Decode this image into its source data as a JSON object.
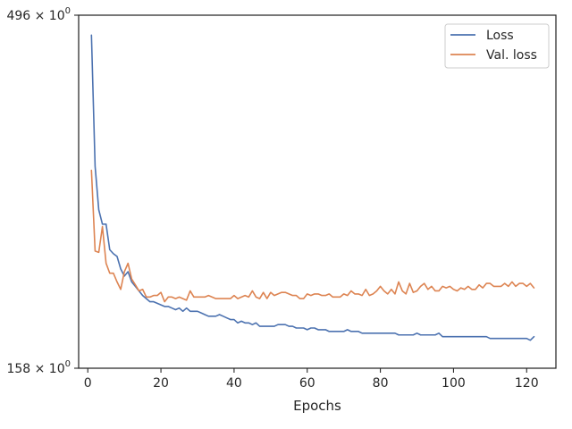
{
  "chart_data": {
    "type": "line",
    "title": "",
    "xlabel": "Epochs",
    "ylabel": "",
    "y_scale": "log",
    "xlim": [
      -2.5,
      128
    ],
    "ylim": [
      158,
      496
    ],
    "x_ticks": [
      0,
      20,
      40,
      60,
      80,
      100,
      120
    ],
    "y_ticks": [
      {
        "value": 496,
        "label_base": "496",
        "label_exp": "0"
      },
      {
        "value": 158,
        "label_base": "158",
        "label_exp": "0"
      }
    ],
    "grid": false,
    "legend": {
      "placement": "top-right"
    },
    "series": [
      {
        "name": "Loss",
        "color": "#4c72b0",
        "x": [
          1,
          2,
          3,
          4,
          5,
          6,
          7,
          8,
          9,
          10,
          11,
          12,
          13,
          14,
          15,
          16,
          17,
          18,
          19,
          20,
          21,
          22,
          23,
          24,
          25,
          26,
          27,
          28,
          29,
          30,
          31,
          32,
          33,
          34,
          35,
          36,
          37,
          38,
          39,
          40,
          41,
          42,
          43,
          44,
          45,
          46,
          47,
          48,
          49,
          50,
          51,
          52,
          53,
          54,
          55,
          56,
          57,
          58,
          59,
          60,
          61,
          62,
          63,
          64,
          65,
          66,
          67,
          68,
          69,
          70,
          71,
          72,
          73,
          74,
          75,
          76,
          77,
          78,
          79,
          80,
          81,
          82,
          83,
          84,
          85,
          86,
          87,
          88,
          89,
          90,
          91,
          92,
          93,
          94,
          95,
          96,
          97,
          98,
          99,
          100,
          101,
          102,
          103,
          104,
          105,
          106,
          107,
          108,
          109,
          110,
          111,
          112,
          113,
          114,
          115,
          116,
          117,
          118,
          119,
          120,
          121,
          122
        ],
        "values": [
          465,
          304,
          264,
          252,
          252,
          232,
          229,
          227,
          218,
          213,
          216,
          209,
          206,
          203,
          200,
          198,
          196,
          196,
          195,
          194,
          193,
          193,
          192,
          191,
          192,
          190,
          192,
          190,
          190,
          190,
          189,
          188,
          187,
          187,
          187,
          188,
          187,
          186,
          185,
          185,
          183,
          184,
          183,
          183,
          182,
          183,
          181,
          181,
          181,
          181,
          181,
          182,
          182,
          182,
          181,
          181,
          180,
          180,
          180,
          179,
          180,
          180,
          179,
          179,
          179,
          178,
          178,
          178,
          178,
          178,
          179,
          178,
          178,
          178,
          177,
          177,
          177,
          177,
          177,
          177,
          177,
          177,
          177,
          177,
          176,
          176,
          176,
          176,
          176,
          177,
          176,
          176,
          176,
          176,
          176,
          177,
          175,
          175,
          175,
          175,
          175,
          175,
          175,
          175,
          175,
          175,
          175,
          175,
          175,
          174,
          174,
          174,
          174,
          174,
          174,
          174,
          174,
          174,
          174,
          174,
          173,
          175
        ]
      },
      {
        "name": "Val. loss",
        "color": "#dd8452",
        "x": [
          1,
          2,
          3,
          4,
          5,
          6,
          7,
          8,
          9,
          10,
          11,
          12,
          13,
          14,
          15,
          16,
          17,
          18,
          19,
          20,
          21,
          22,
          23,
          24,
          25,
          26,
          27,
          28,
          29,
          30,
          31,
          32,
          33,
          34,
          35,
          36,
          37,
          38,
          39,
          40,
          41,
          42,
          43,
          44,
          45,
          46,
          47,
          48,
          49,
          50,
          51,
          52,
          53,
          54,
          55,
          56,
          57,
          58,
          59,
          60,
          61,
          62,
          63,
          64,
          65,
          66,
          67,
          68,
          69,
          70,
          71,
          72,
          73,
          74,
          75,
          76,
          77,
          78,
          79,
          80,
          81,
          82,
          83,
          84,
          85,
          86,
          87,
          88,
          89,
          90,
          91,
          92,
          93,
          94,
          95,
          96,
          97,
          98,
          99,
          100,
          101,
          102,
          103,
          104,
          105,
          106,
          107,
          108,
          109,
          110,
          111,
          112,
          113,
          114,
          115,
          116,
          117,
          118,
          119,
          120,
          121,
          122
        ],
        "values": [
          300,
          231,
          230,
          250,
          222,
          215,
          215,
          209,
          204,
          216,
          222,
          211,
          207,
          203,
          204,
          199,
          199,
          200,
          200,
          202,
          196,
          199,
          199,
          198,
          199,
          198,
          197,
          203,
          199,
          199,
          199,
          199,
          200,
          199,
          198,
          198,
          198,
          198,
          198,
          200,
          198,
          199,
          200,
          199,
          203,
          199,
          198,
          202,
          198,
          202,
          200,
          201,
          202,
          202,
          201,
          200,
          200,
          198,
          198,
          201,
          200,
          201,
          201,
          200,
          200,
          201,
          199,
          199,
          199,
          201,
          200,
          203,
          201,
          201,
          200,
          204,
          200,
          201,
          203,
          206,
          203,
          201,
          204,
          201,
          209,
          203,
          201,
          208,
          202,
          203,
          206,
          208,
          204,
          206,
          203,
          203,
          206,
          205,
          206,
          204,
          203,
          205,
          204,
          206,
          204,
          204,
          207,
          205,
          208,
          208,
          206,
          206,
          206,
          208,
          206,
          209,
          206,
          208,
          208,
          206,
          208,
          205
        ]
      }
    ]
  }
}
